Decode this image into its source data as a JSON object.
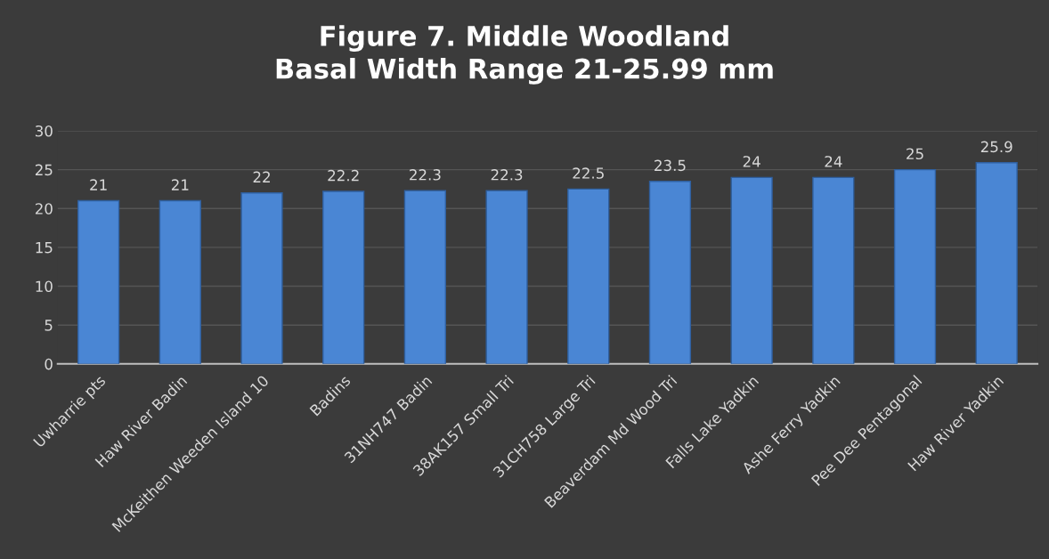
{
  "chart_data": {
    "type": "bar",
    "title": "Figure 7. Middle Woodland\nBasal Width Range 21-25.99 mm",
    "categories": [
      "Uwharrie pts",
      "Haw River Badin",
      "McKeithen Weeden Island 10",
      "Badins",
      "31NH747 Badin",
      "38AK157 Small Tri",
      "31CH758 Large Tri",
      "Beaverdam Md Wood Tri",
      "Falls Lake Yadkin",
      "Ashe Ferry Yadkin",
      "Pee Dee Pentagonal",
      "Haw River Yadkin"
    ],
    "values": [
      21,
      21,
      22,
      22.2,
      22.3,
      22.3,
      22.5,
      23.5,
      24,
      24,
      25,
      25.9
    ],
    "color": "#4a86d4",
    "ylim": [
      0,
      30
    ],
    "yticks": [
      0,
      5,
      10,
      15,
      20,
      25,
      30
    ],
    "grid": "y",
    "data_labels": true
  }
}
